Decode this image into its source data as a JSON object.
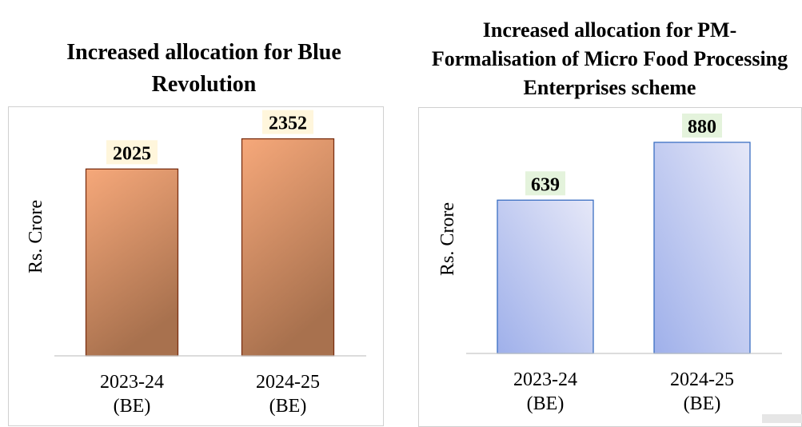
{
  "colors": {
    "chart1_bar_light": "#f6a87a",
    "chart1_bar_dark": "#a8714e",
    "chart1_bar_border": "#7a2f12",
    "chart1_label_bg": "#fff6dc",
    "chart2_bar_light": "#e6e8f8",
    "chart2_bar_dark": "#9fb0ea",
    "chart2_bar_border": "#3b6fc2",
    "chart2_label_bg": "#e4f3dc",
    "axis": "#c8c8c8",
    "panel_border": "#d0d0d0"
  },
  "chart_data": [
    {
      "type": "bar",
      "title": "Increased allocation for Blue Revolution",
      "ylabel": "Rs. Crore",
      "categories": [
        "2023-24\n(BE)",
        "2024-25\n(BE)"
      ],
      "values": [
        2025,
        2352
      ],
      "ylim": [
        0,
        2600
      ],
      "grid": false,
      "legend": "none"
    },
    {
      "type": "bar",
      "title": "Increased allocation for PM-Formalisation of Micro Food Processing Enterprises scheme",
      "ylabel": "Rs. Crore",
      "categories": [
        "2023-24\n(BE)",
        "2024-25\n(BE)"
      ],
      "values": [
        639,
        880
      ],
      "ylim": [
        0,
        1000
      ],
      "grid": false,
      "legend": "none"
    }
  ]
}
